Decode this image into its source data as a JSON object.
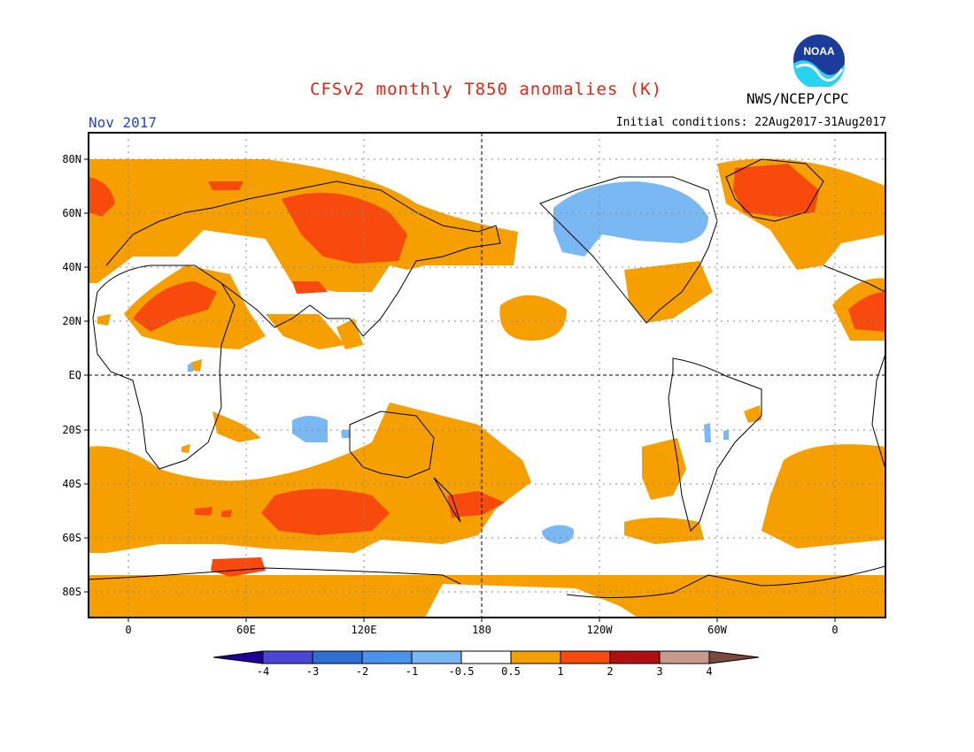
{
  "header": {
    "title": "CFSv2 monthly T850 anomalies (K)",
    "month": "Nov 2017",
    "initial_conditions": "Initial conditions: 22Aug2017-31Aug2017",
    "agency": "NWS/NCEP/CPC",
    "logo_text": "NOAA"
  },
  "axes": {
    "lat_labels": [
      "80N",
      "60N",
      "40N",
      "20N",
      "EQ",
      "20S",
      "40S",
      "60S",
      "80S"
    ],
    "lon_labels": [
      "0",
      "60E",
      "120E",
      "180",
      "120W",
      "60W",
      "0"
    ]
  },
  "colorbar": {
    "tick_labels": [
      "-4",
      "-3",
      "-2",
      "-1",
      "-0.5",
      "0.5",
      "1",
      "2",
      "3",
      "4"
    ],
    "colors": [
      "#1e0096",
      "#4a45d6",
      "#2e6fd6",
      "#4a93ec",
      "#7ab8f4",
      "#ffffff",
      "#f5a000",
      "#f84a0d",
      "#b01010",
      "#c89a8c",
      "#7a4a3e"
    ]
  }
}
